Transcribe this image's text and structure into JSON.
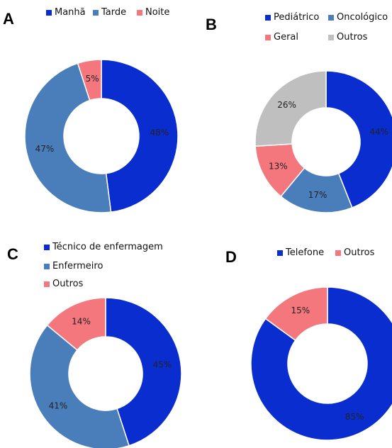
{
  "chart_data": [
    {
      "panel": "A",
      "type": "pie",
      "categories": [
        "Manhã",
        "Tarde",
        "Noite"
      ],
      "values": [
        48,
        47,
        5
      ],
      "labels": [
        "48%",
        "47%",
        "5%"
      ],
      "colors": [
        "#0a2dcf",
        "#4a7ebb",
        "#f4777e"
      ],
      "legend": "top"
    },
    {
      "panel": "B",
      "type": "pie",
      "categories": [
        "Pediátrico",
        "Oncológico",
        "Geral",
        "Outros"
      ],
      "values": [
        44,
        17,
        13,
        26
      ],
      "labels": [
        "44%",
        "17%",
        "13%",
        "26%"
      ],
      "colors": [
        "#0a2dcf",
        "#4a7ebb",
        "#f4777e",
        "#bfbfbf"
      ],
      "legend": "top"
    },
    {
      "panel": "C",
      "type": "pie",
      "categories": [
        "Técnico de enfermagem",
        "Enfermeiro",
        "Outros"
      ],
      "values": [
        45,
        41,
        14
      ],
      "labels": [
        "45%",
        "41%",
        "14%"
      ],
      "colors": [
        "#0a2dcf",
        "#4a7ebb",
        "#f4777e"
      ],
      "legend": "top"
    },
    {
      "panel": "D",
      "type": "pie",
      "categories": [
        "Telefone",
        "Outros"
      ],
      "values": [
        85,
        15
      ],
      "labels": [
        "85%",
        "15%"
      ],
      "colors": [
        "#0a2dcf",
        "#f4777e"
      ],
      "legend": "top"
    }
  ]
}
